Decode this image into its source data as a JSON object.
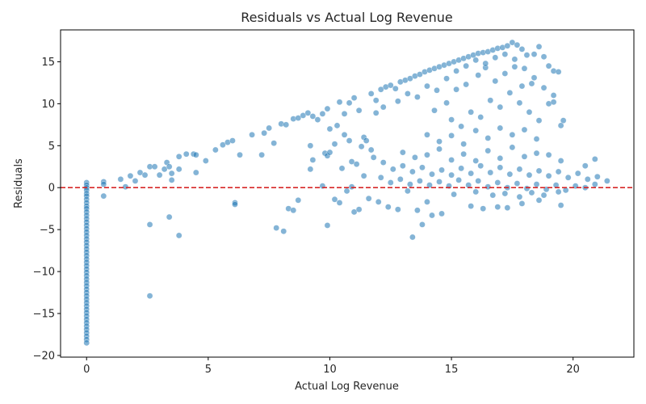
{
  "chart_data": {
    "type": "scatter",
    "title": "Residuals vs Actual Log Revenue",
    "xlabel": "Actual Log Revenue",
    "ylabel": "Residuals",
    "xlim": [
      -1.07,
      22.5
    ],
    "ylim": [
      -20.2,
      18.8
    ],
    "xticks": [
      0,
      5,
      10,
      15,
      20
    ],
    "yticks": [
      -20,
      -15,
      -10,
      -5,
      0,
      5,
      10,
      15
    ],
    "reference_line": {
      "y": 0,
      "color": "#d62728",
      "style": "dashed"
    },
    "point_color": "#1f77b4",
    "point_opacity": 0.55,
    "grid": false,
    "legend": "none",
    "series": [
      {
        "points": [
          [
            0,
            0.6
          ],
          [
            0,
            0.3
          ],
          [
            0,
            0.0
          ],
          [
            0,
            -0.3
          ],
          [
            0,
            -0.7
          ],
          [
            0,
            -1.0
          ],
          [
            0,
            -1.4
          ],
          [
            0,
            -1.8
          ],
          [
            0,
            -2.2
          ],
          [
            0,
            -2.5
          ],
          [
            0,
            -2.9
          ],
          [
            0,
            -3.3
          ],
          [
            0,
            -3.7
          ],
          [
            0,
            -4.1
          ],
          [
            0,
            -4.5
          ],
          [
            0,
            -4.9
          ],
          [
            0,
            -5.3
          ],
          [
            0,
            -5.7
          ],
          [
            0,
            -6.1
          ],
          [
            0,
            -6.5
          ],
          [
            0,
            -6.9
          ],
          [
            0,
            -7.3
          ],
          [
            0,
            -7.7
          ],
          [
            0,
            -8.1
          ],
          [
            0,
            -8.5
          ],
          [
            0,
            -8.9
          ],
          [
            0,
            -9.3
          ],
          [
            0,
            -9.7
          ],
          [
            0,
            -10.1
          ],
          [
            0,
            -10.5
          ],
          [
            0,
            -10.9
          ],
          [
            0,
            -11.3
          ],
          [
            0,
            -11.7
          ],
          [
            0,
            -12.1
          ],
          [
            0,
            -12.5
          ],
          [
            0,
            -12.9
          ],
          [
            0,
            -13.3
          ],
          [
            0,
            -13.7
          ],
          [
            0,
            -14.1
          ],
          [
            0,
            -14.5
          ],
          [
            0,
            -14.9
          ],
          [
            0,
            -15.3
          ],
          [
            0,
            -15.7
          ],
          [
            0,
            -16.1
          ],
          [
            0,
            -16.5
          ],
          [
            0,
            -16.9
          ],
          [
            0,
            -17.3
          ],
          [
            0,
            -17.7
          ],
          [
            0,
            -18.1
          ],
          [
            0,
            -18.5
          ],
          [
            0.7,
            0.7
          ],
          [
            0.7,
            0.4
          ],
          [
            0.7,
            -1.0
          ],
          [
            1.4,
            1.0
          ],
          [
            1.6,
            0.1
          ],
          [
            1.8,
            1.4
          ],
          [
            2.0,
            0.8
          ],
          [
            2.2,
            1.8
          ],
          [
            2.4,
            1.5
          ],
          [
            2.6,
            2.5
          ],
          [
            2.8,
            2.5
          ],
          [
            3.0,
            1.5
          ],
          [
            3.2,
            2.2
          ],
          [
            3.3,
            3.0
          ],
          [
            3.4,
            2.5
          ],
          [
            3.5,
            1.7
          ],
          [
            3.5,
            0.9
          ],
          [
            3.8,
            2.2
          ],
          [
            3.8,
            3.7
          ],
          [
            4.1,
            4.0
          ],
          [
            4.4,
            4.0
          ],
          [
            4.5,
            3.9
          ],
          [
            4.5,
            1.8
          ],
          [
            4.9,
            3.2
          ],
          [
            5.3,
            4.5
          ],
          [
            5.6,
            5.1
          ],
          [
            5.8,
            5.4
          ],
          [
            6.0,
            5.6
          ],
          [
            6.3,
            3.9
          ],
          [
            6.1,
            -1.8
          ],
          [
            6.1,
            -2.0
          ],
          [
            2.6,
            -4.4
          ],
          [
            3.4,
            -3.5
          ],
          [
            3.8,
            -5.7
          ],
          [
            2.6,
            -12.9
          ],
          [
            6.8,
            6.3
          ],
          [
            7.2,
            3.9
          ],
          [
            7.3,
            6.5
          ],
          [
            7.5,
            7.1
          ],
          [
            7.7,
            5.3
          ],
          [
            8.0,
            7.6
          ],
          [
            8.2,
            7.5
          ],
          [
            8.5,
            8.2
          ],
          [
            8.7,
            8.3
          ],
          [
            8.9,
            8.6
          ],
          [
            9.1,
            8.9
          ],
          [
            9.3,
            8.5
          ],
          [
            9.5,
            8.1
          ],
          [
            9.7,
            8.8
          ],
          [
            9.9,
            9.4
          ],
          [
            9.2,
            5.0
          ],
          [
            9.3,
            3.3
          ],
          [
            9.2,
            2.2
          ],
          [
            9.7,
            0.2
          ],
          [
            9.8,
            4.1
          ],
          [
            9.9,
            3.8
          ],
          [
            10.0,
            4.2
          ],
          [
            10.0,
            7.0
          ],
          [
            10.3,
            7.4
          ],
          [
            10.4,
            10.2
          ],
          [
            10.6,
            8.8
          ],
          [
            10.8,
            10.1
          ],
          [
            11.0,
            10.7
          ],
          [
            11.2,
            9.2
          ],
          [
            11.4,
            6.0
          ],
          [
            11.5,
            5.6
          ],
          [
            11.7,
            11.2
          ],
          [
            11.9,
            10.4
          ],
          [
            12.1,
            11.7
          ],
          [
            12.3,
            12.0
          ],
          [
            12.5,
            12.2
          ],
          [
            12.7,
            11.8
          ],
          [
            12.9,
            12.6
          ],
          [
            13.1,
            12.8
          ],
          [
            13.3,
            13.0
          ],
          [
            13.5,
            13.3
          ],
          [
            13.7,
            13.5
          ],
          [
            13.9,
            13.8
          ],
          [
            14.1,
            14.0
          ],
          [
            14.3,
            14.2
          ],
          [
            14.5,
            14.4
          ],
          [
            14.7,
            14.6
          ],
          [
            14.9,
            14.8
          ],
          [
            15.1,
            15.0
          ],
          [
            15.3,
            15.2
          ],
          [
            15.5,
            15.4
          ],
          [
            15.7,
            15.6
          ],
          [
            15.9,
            15.8
          ],
          [
            16.1,
            16.0
          ],
          [
            16.3,
            16.1
          ],
          [
            16.5,
            16.2
          ],
          [
            16.7,
            16.4
          ],
          [
            16.9,
            16.6
          ],
          [
            17.1,
            16.7
          ],
          [
            17.3,
            16.9
          ],
          [
            17.5,
            17.3
          ],
          [
            17.7,
            17.0
          ],
          [
            17.9,
            16.5
          ],
          [
            18.1,
            15.8
          ],
          [
            18.4,
            15.9
          ],
          [
            18.6,
            16.8
          ],
          [
            18.8,
            15.6
          ],
          [
            19.0,
            14.5
          ],
          [
            19.2,
            13.9
          ],
          [
            19.4,
            13.8
          ],
          [
            18.3,
            12.4
          ],
          [
            19.0,
            10.0
          ],
          [
            19.2,
            10.2
          ],
          [
            19.6,
            8.0
          ],
          [
            19.5,
            7.4
          ],
          [
            7.8,
            -4.8
          ],
          [
            8.1,
            -5.2
          ],
          [
            8.3,
            -2.5
          ],
          [
            8.5,
            -2.7
          ],
          [
            8.7,
            -1.5
          ],
          [
            9.9,
            -4.5
          ],
          [
            10.2,
            -1.4
          ],
          [
            10.4,
            -1.8
          ],
          [
            10.7,
            -0.4
          ],
          [
            11.0,
            -2.9
          ],
          [
            11.2,
            -2.6
          ],
          [
            11.6,
            -1.3
          ],
          [
            12.0,
            -1.7
          ],
          [
            12.4,
            -2.3
          ],
          [
            12.8,
            -2.6
          ],
          [
            13.2,
            -0.4
          ],
          [
            13.4,
            -5.9
          ],
          [
            13.6,
            -2.7
          ],
          [
            13.8,
            -4.4
          ],
          [
            14.0,
            -1.7
          ],
          [
            14.2,
            -3.3
          ],
          [
            14.6,
            -3.1
          ],
          [
            15.1,
            -0.8
          ],
          [
            15.8,
            -2.2
          ],
          [
            16.3,
            -2.5
          ],
          [
            16.9,
            -2.3
          ],
          [
            17.3,
            -2.4
          ],
          [
            17.9,
            -1.9
          ],
          [
            18.6,
            -1.5
          ],
          [
            19.5,
            -2.1
          ],
          [
            14.3,
            9.2
          ],
          [
            14.8,
            10.1
          ],
          [
            15.2,
            11.7
          ],
          [
            15.6,
            12.3
          ],
          [
            16.1,
            13.4
          ],
          [
            16.4,
            14.3
          ],
          [
            16.8,
            12.7
          ],
          [
            17.2,
            13.6
          ],
          [
            17.6,
            14.4
          ],
          [
            17.9,
            12.1
          ],
          [
            15.0,
            8.1
          ],
          [
            15.4,
            7.3
          ],
          [
            15.8,
            9.0
          ],
          [
            16.2,
            8.4
          ],
          [
            16.6,
            10.4
          ],
          [
            17.0,
            9.6
          ],
          [
            17.4,
            11.3
          ],
          [
            17.8,
            10.1
          ],
          [
            18.2,
            9.0
          ],
          [
            18.6,
            8.0
          ],
          [
            14.0,
            6.3
          ],
          [
            14.5,
            5.5
          ],
          [
            15.0,
            6.2
          ],
          [
            15.5,
            5.2
          ],
          [
            16.0,
            6.8
          ],
          [
            16.5,
            5.9
          ],
          [
            17.0,
            7.1
          ],
          [
            17.5,
            6.3
          ],
          [
            18.0,
            6.9
          ],
          [
            18.5,
            5.8
          ],
          [
            13.0,
            4.2
          ],
          [
            13.5,
            3.6
          ],
          [
            14.0,
            3.9
          ],
          [
            14.5,
            4.6
          ],
          [
            15.0,
            3.3
          ],
          [
            15.5,
            4.0
          ],
          [
            16.0,
            3.2
          ],
          [
            16.5,
            4.4
          ],
          [
            17.0,
            3.5
          ],
          [
            17.5,
            4.8
          ],
          [
            18.0,
            3.7
          ],
          [
            18.5,
            4.1
          ],
          [
            19.0,
            3.9
          ],
          [
            19.5,
            3.2
          ],
          [
            12.2,
            3.0
          ],
          [
            12.6,
            2.2
          ],
          [
            13.0,
            2.6
          ],
          [
            13.4,
            1.9
          ],
          [
            13.8,
            2.4
          ],
          [
            14.2,
            1.6
          ],
          [
            14.6,
            2.1
          ],
          [
            15.0,
            1.5
          ],
          [
            15.4,
            2.3
          ],
          [
            15.8,
            1.7
          ],
          [
            16.2,
            2.6
          ],
          [
            16.6,
            1.8
          ],
          [
            17.0,
            2.4
          ],
          [
            17.4,
            1.6
          ],
          [
            17.8,
            2.2
          ],
          [
            18.2,
            1.5
          ],
          [
            18.6,
            2.0
          ],
          [
            19.0,
            1.4
          ],
          [
            19.4,
            1.9
          ],
          [
            19.8,
            1.2
          ],
          [
            20.2,
            1.7
          ],
          [
            20.6,
            1.0
          ],
          [
            21.0,
            1.3
          ],
          [
            21.4,
            0.8
          ],
          [
            20.9,
            3.4
          ],
          [
            20.5,
            2.6
          ],
          [
            12.1,
            1.2
          ],
          [
            12.5,
            0.6
          ],
          [
            12.9,
            1.0
          ],
          [
            13.3,
            0.4
          ],
          [
            13.7,
            0.8
          ],
          [
            14.1,
            0.3
          ],
          [
            14.5,
            0.7
          ],
          [
            14.9,
            0.2
          ],
          [
            15.3,
            0.9
          ],
          [
            15.7,
            0.3
          ],
          [
            16.1,
            0.8
          ],
          [
            16.5,
            0.1
          ],
          [
            16.9,
            0.6
          ],
          [
            17.3,
            0.0
          ],
          [
            17.7,
            0.5
          ],
          [
            18.1,
            -0.1
          ],
          [
            18.5,
            0.4
          ],
          [
            18.9,
            -0.2
          ],
          [
            19.3,
            0.3
          ],
          [
            19.7,
            -0.3
          ],
          [
            20.1,
            0.2
          ],
          [
            20.5,
            0.0
          ],
          [
            20.9,
            0.4
          ],
          [
            16.0,
            -0.5
          ],
          [
            16.7,
            -0.9
          ],
          [
            17.2,
            -0.7
          ],
          [
            17.8,
            -1.1
          ],
          [
            18.3,
            -0.6
          ],
          [
            18.8,
            -0.9
          ],
          [
            19.4,
            -0.5
          ],
          [
            11.7,
            4.5
          ],
          [
            11.9,
            8.9
          ],
          [
            12.2,
            9.6
          ],
          [
            12.8,
            10.3
          ],
          [
            13.2,
            11.2
          ],
          [
            13.6,
            10.8
          ],
          [
            14.0,
            12.1
          ],
          [
            14.4,
            11.6
          ],
          [
            14.8,
            13.0
          ],
          [
            15.2,
            13.9
          ],
          [
            15.6,
            14.5
          ],
          [
            16.0,
            15.2
          ],
          [
            16.4,
            14.8
          ],
          [
            16.8,
            15.5
          ],
          [
            17.2,
            15.9
          ],
          [
            17.6,
            15.3
          ],
          [
            18.0,
            14.2
          ],
          [
            18.4,
            13.1
          ],
          [
            18.8,
            11.9
          ],
          [
            19.2,
            11.0
          ],
          [
            10.9,
            3.1
          ],
          [
            11.1,
            2.8
          ],
          [
            11.3,
            4.9
          ],
          [
            11.8,
            3.6
          ],
          [
            10.6,
            6.3
          ],
          [
            10.8,
            5.6
          ],
          [
            10.2,
            5.2
          ],
          [
            10.5,
            2.3
          ],
          [
            10.9,
            0.1
          ],
          [
            11.4,
            1.4
          ]
        ]
      }
    ]
  }
}
